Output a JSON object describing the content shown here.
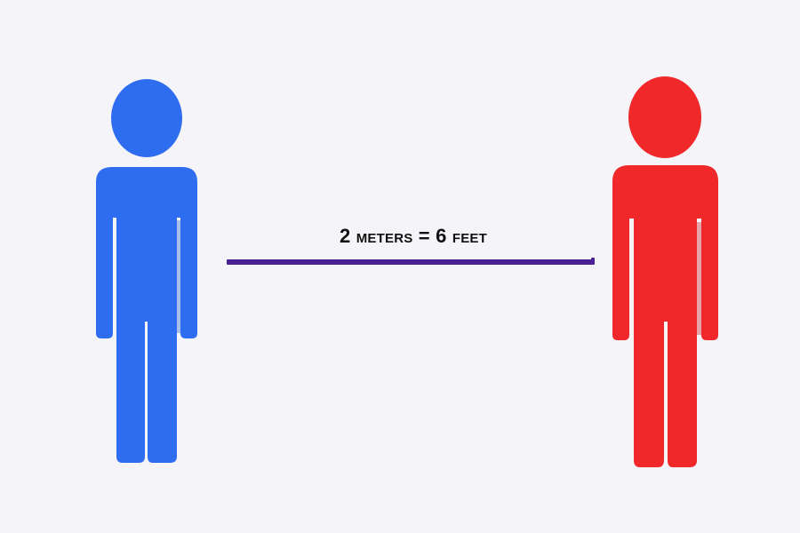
{
  "label": {
    "text": "2 meters = 6 feet"
  },
  "people": [
    {
      "name": "blue-person",
      "color": "#2f6df0",
      "shade": "#1e55cf"
    },
    {
      "name": "red-person",
      "color": "#f0282a",
      "shade": "#c81416"
    }
  ],
  "line": {
    "color": "#4a2193"
  }
}
